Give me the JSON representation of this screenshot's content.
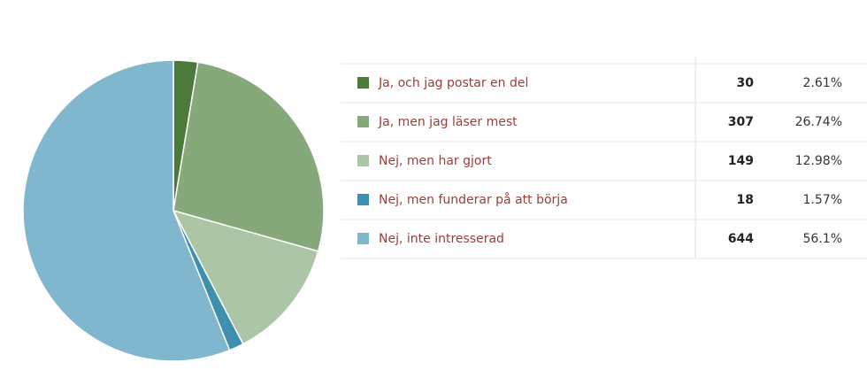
{
  "chart_data": {
    "type": "pie",
    "categories": [
      "Ja, och jag postar en del",
      "Ja, men jag läser mest",
      "Nej, men har gjort",
      "Nej, men funderar på att börja",
      "Nej, inte intresserad"
    ],
    "counts": [
      30,
      307,
      149,
      18,
      644
    ],
    "values": [
      2.61,
      26.74,
      12.98,
      1.57,
      56.1
    ],
    "value_labels": [
      "2.61%",
      "26.74%",
      "12.98%",
      "1.57%",
      "56.1%"
    ],
    "colors": [
      "#4b7a3b",
      "#87a87a",
      "#adc5a7",
      "#3e8fb0",
      "#80b7cf"
    ]
  }
}
